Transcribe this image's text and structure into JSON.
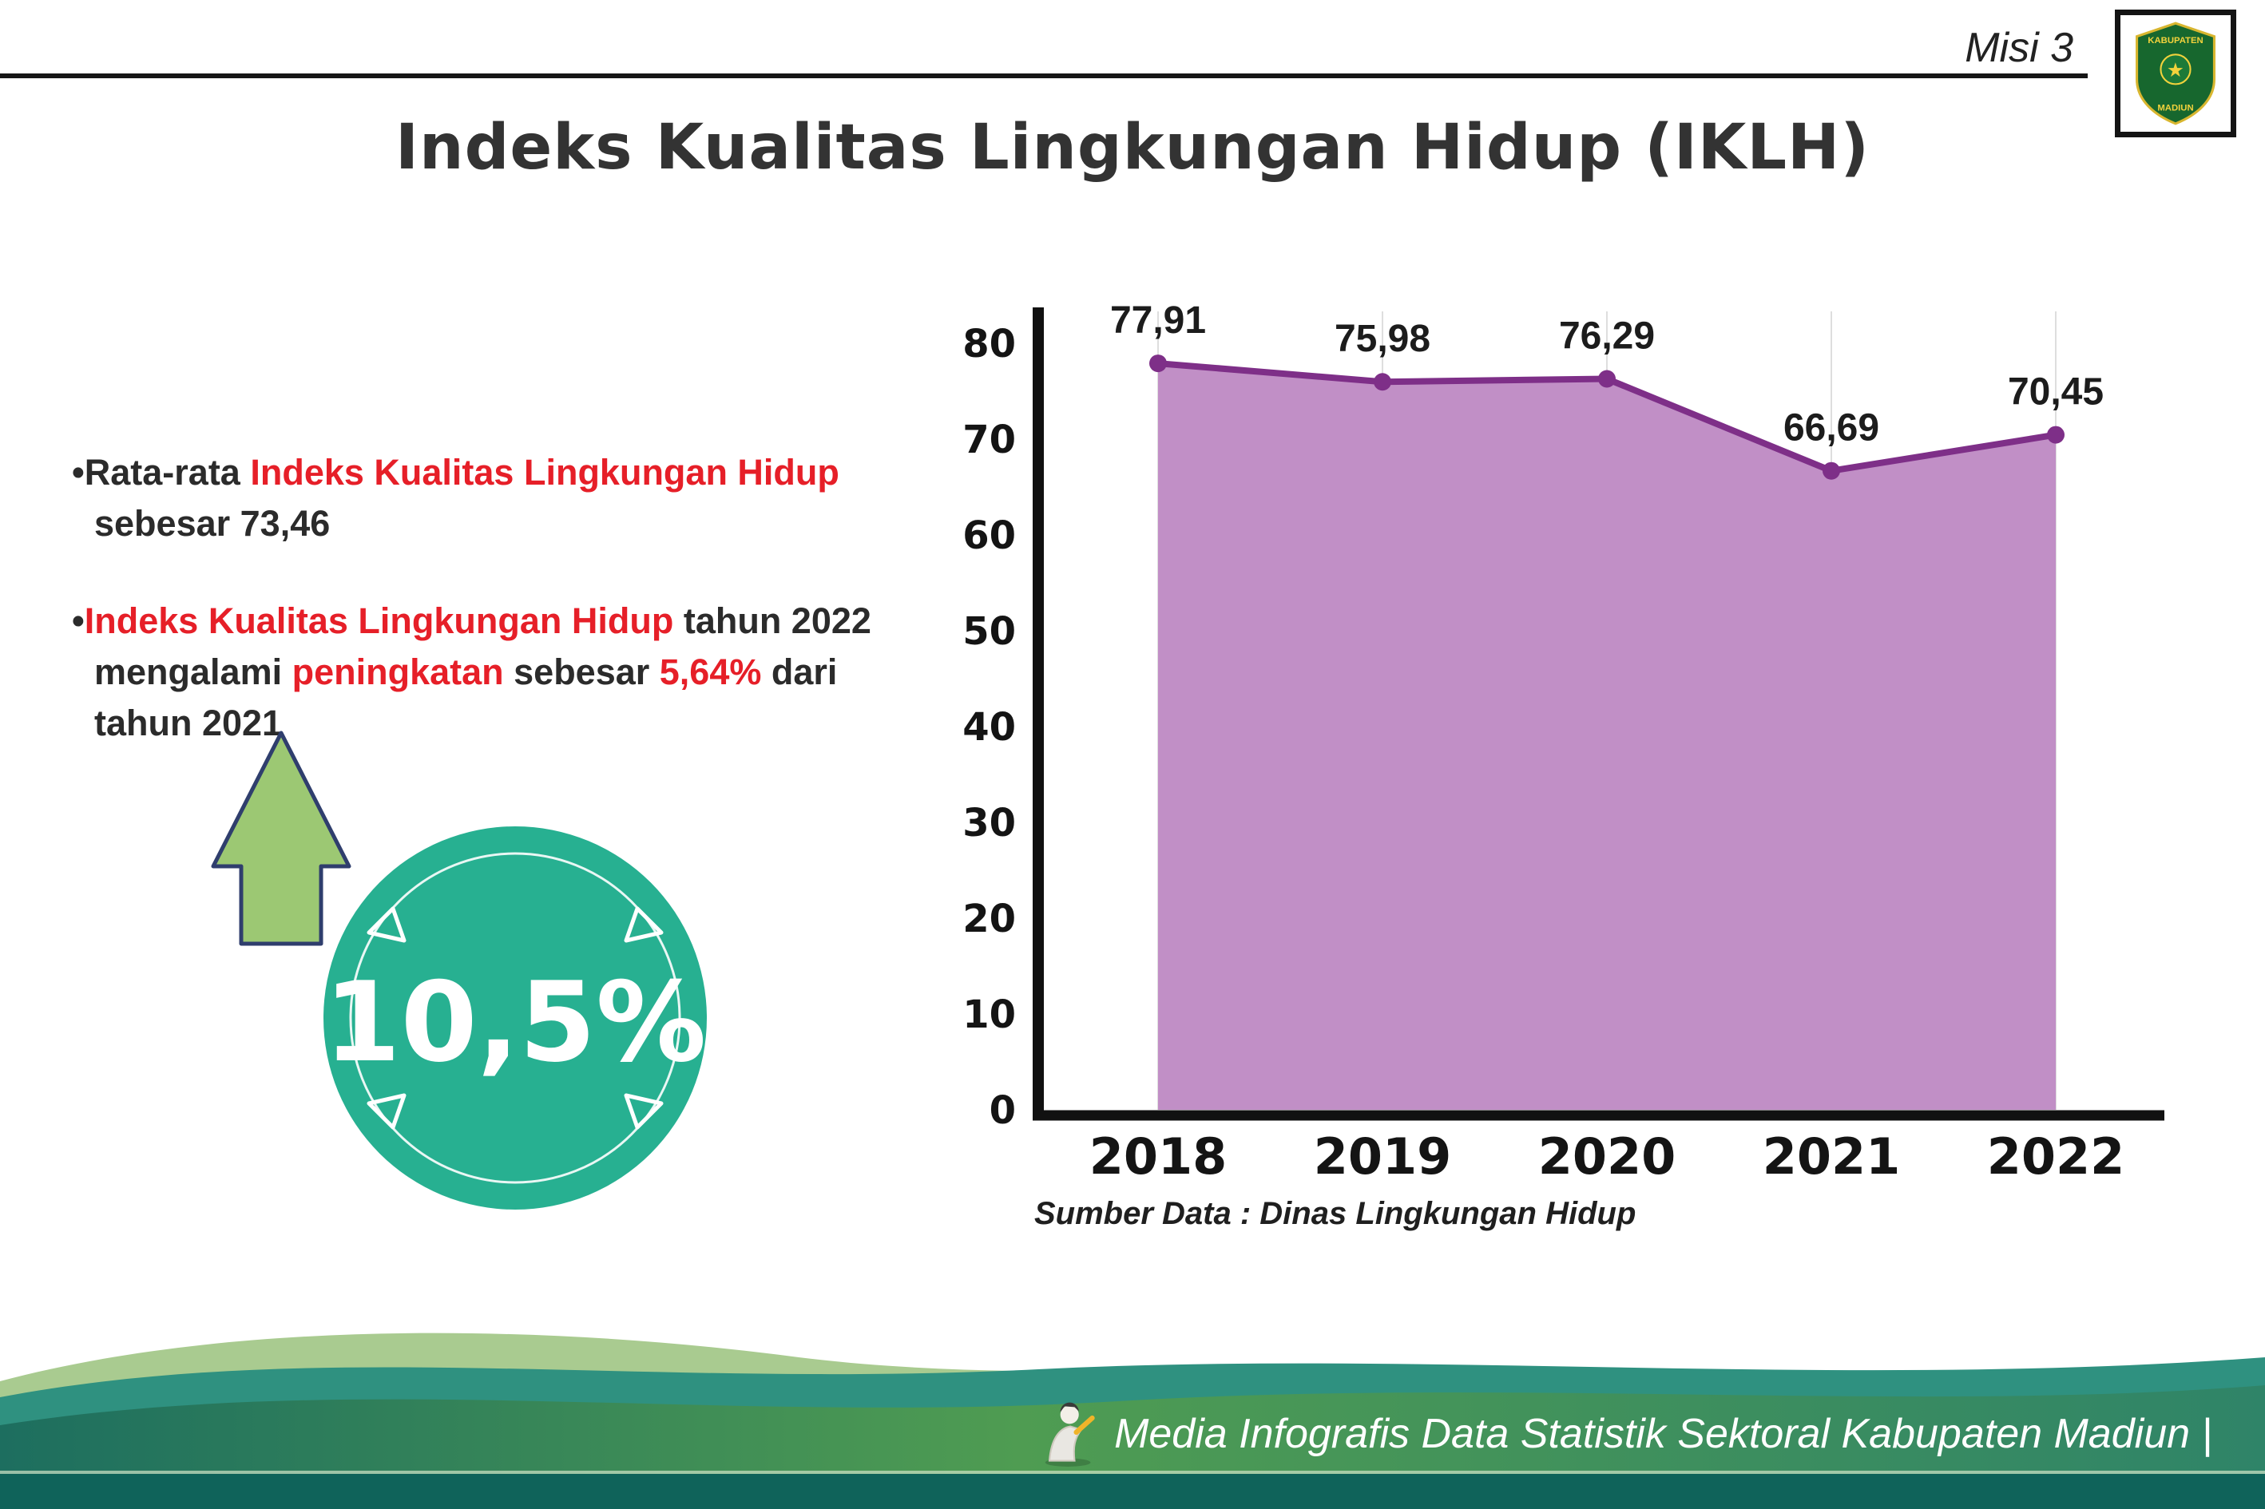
{
  "header": {
    "misi_label": "Misi 3",
    "title": "Indeks Kualitas Lingkungan Hidup (IKLH)",
    "logo": {
      "line1": "KABUPATEN",
      "line2": "MADIUN",
      "star": "★"
    }
  },
  "bullets": [
    {
      "marker": "•",
      "segments": [
        {
          "text": "Rata-rata "
        },
        {
          "text": "Indeks Kualitas Lingkungan Hidup"
        },
        {
          "text": " sebesar 73,46"
        }
      ]
    },
    {
      "marker": "•",
      "segments": [
        {
          "text": "Indeks Kualitas Lingkungan Hidup"
        },
        {
          "text": " tahun 2022 mengalami "
        },
        {
          "text": "peningkatan"
        },
        {
          "text": " sebesar "
        },
        {
          "text": "5,64%"
        },
        {
          "text": " dari tahun 2021"
        }
      ]
    }
  ],
  "badge": {
    "value": "10,5%"
  },
  "chart_data": {
    "type": "area",
    "categories": [
      "2018",
      "2019",
      "2020",
      "2021",
      "2022"
    ],
    "values": [
      77.91,
      75.98,
      76.29,
      66.69,
      70.45
    ],
    "value_labels": [
      "77,91",
      "75,98",
      "76,29",
      "66,69",
      "70,45"
    ],
    "ylim": [
      0,
      80
    ],
    "yticks": [
      0,
      10,
      20,
      30,
      40,
      50,
      60,
      70,
      80
    ],
    "grid": "vertical-light",
    "legend": "none",
    "source": "Sumber Data : Dinas Lingkungan Hidup",
    "colors": {
      "area": "#c18fc6",
      "line": "#7e2f88",
      "point": "#7e2f88"
    }
  },
  "footer": {
    "caption": "Media Infografis Data Statistik Sektoral Kabupaten Madiun |"
  }
}
